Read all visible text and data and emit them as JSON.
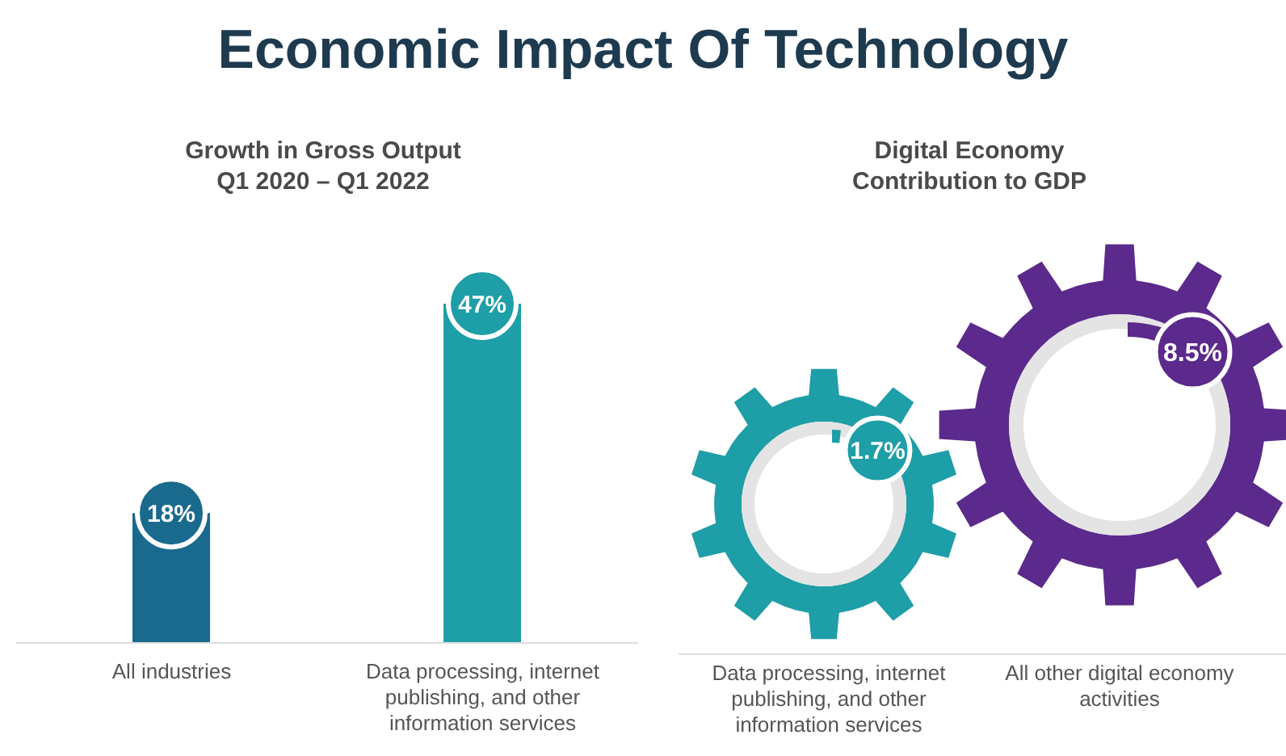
{
  "chart_data": [
    {
      "type": "bar",
      "title": "Economic Impact Of Technology",
      "subtitle": "Growth in Gross Output\nQ1 2020 – Q1 2022",
      "categories": [
        "All industries",
        "Data processing, internet publishing, and other information services"
      ],
      "values": [
        18,
        47
      ],
      "colors": [
        "#1a6a8e",
        "#1e9ea6"
      ],
      "value_labels": [
        "18%",
        "47%"
      ]
    },
    {
      "type": "other",
      "title": "Digital Economy\nContribution to GDP",
      "categories": [
        "Data processing, internet publishing, and other information services",
        "All other digital economy activities"
      ],
      "values": [
        1.7,
        8.5
      ],
      "colors": [
        "#1e9ea6",
        "#5b2a8c"
      ],
      "value_labels": [
        "1.7%",
        "8.5%"
      ]
    }
  ]
}
